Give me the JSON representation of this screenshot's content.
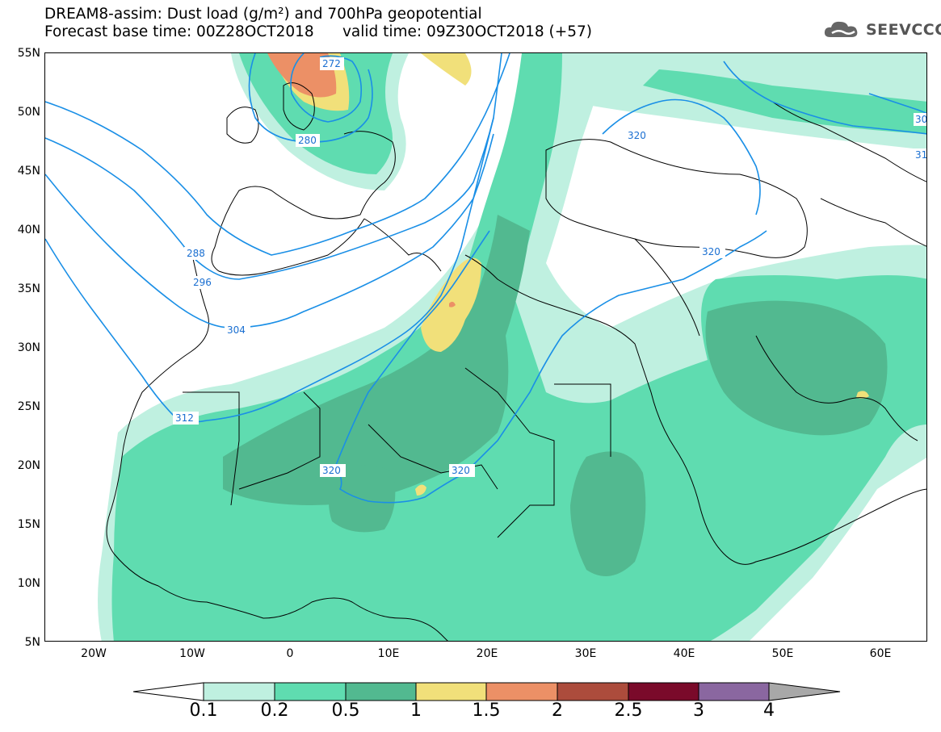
{
  "header": {
    "title_line1": "DREAM8-assim: Dust load (g/m²) and 700hPa geopotential",
    "title_line2": "Forecast base time: 00Z28OCT2018      valid time: 09Z30OCT2018 (+57)"
  },
  "logo": {
    "text": "SEEVCCC",
    "icon": "cloud-icon"
  },
  "map": {
    "lat_labels": [
      "55N",
      "50N",
      "45N",
      "40N",
      "35N",
      "30N",
      "25N",
      "20N",
      "15N",
      "10N",
      "5N"
    ],
    "lon_labels": [
      "20W",
      "10W",
      "0",
      "10E",
      "20E",
      "30E",
      "40E",
      "50E",
      "60E"
    ],
    "contour_labels": {
      "c272": "272",
      "c280": "280",
      "c288": "288",
      "c296": "296",
      "c304": "304",
      "c312": "312",
      "c320a": "320",
      "c320b": "320",
      "c320c": "320",
      "c320d": "320",
      "c30x": "30",
      "c31x": "31"
    },
    "contour_color": "#1a8fe6"
  },
  "colorbar": {
    "labels": [
      "0.1",
      "0.2",
      "0.5",
      "1",
      "1.5",
      "2",
      "2.5",
      "3",
      "4"
    ],
    "colors": [
      "#bff0e0",
      "#5fdcb0",
      "#52b990",
      "#f1e07a",
      "#ec9066",
      "#ac4c3c",
      "#7a0a2a",
      "#8a67a0",
      "#a8a8a8"
    ]
  }
}
